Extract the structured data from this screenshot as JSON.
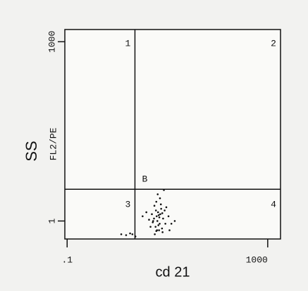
{
  "chart_data": {
    "type": "scatter",
    "x_label": "cd 21",
    "y_label": "SS",
    "y_sublabel": "FL2/PE",
    "x_log": true,
    "y_log": true,
    "xlim": [
      0.09,
      1800
    ],
    "ylim": [
      0.5,
      1600
    ],
    "xticks": [
      {
        "value": 0.1,
        "label": ".1"
      },
      1000
    ],
    "yticks": [
      1,
      1000
    ],
    "quadrant_x": 2.25,
    "quadrant_y": 3.4,
    "quadrant_labels": [
      "1",
      "2",
      "3",
      "4"
    ],
    "gate_label": "B",
    "color": "#111111",
    "x": [
      5.2,
      6.1,
      7.0,
      6.5,
      5.8,
      8.2,
      7.5,
      6.8,
      4.9,
      9.1,
      5.5,
      6.3,
      7.2,
      8.8,
      6.0,
      5.1,
      7.8,
      10.5,
      4.3,
      6.6,
      7.1,
      5.9,
      8.0,
      6.9,
      12.0,
      3.8,
      6.2,
      7.4,
      5.4,
      9.5,
      6.7,
      14.0,
      4.6,
      7.9,
      6.4,
      3.2,
      5.6,
      11.0,
      2.0,
      1.5,
      1.8,
      2.3,
      1.2,
      8.5,
      6.0
    ],
    "values": [
      1.0,
      1.2,
      0.9,
      1.4,
      0.8,
      1.1,
      1.6,
      0.7,
      1.3,
      0.9,
      1.8,
      1.0,
      1.3,
      1.5,
      2.1,
      0.95,
      0.75,
      1.2,
      1.05,
      0.85,
      2.4,
      1.5,
      0.65,
      1.15,
      0.9,
      1.4,
      0.7,
      1.9,
      1.1,
      1.7,
      1.25,
      1.0,
      0.8,
      1.35,
      2.8,
      1.2,
      0.6,
      0.7,
      0.6,
      0.58,
      0.62,
      0.55,
      0.6,
      3.3,
      0.68
    ]
  }
}
